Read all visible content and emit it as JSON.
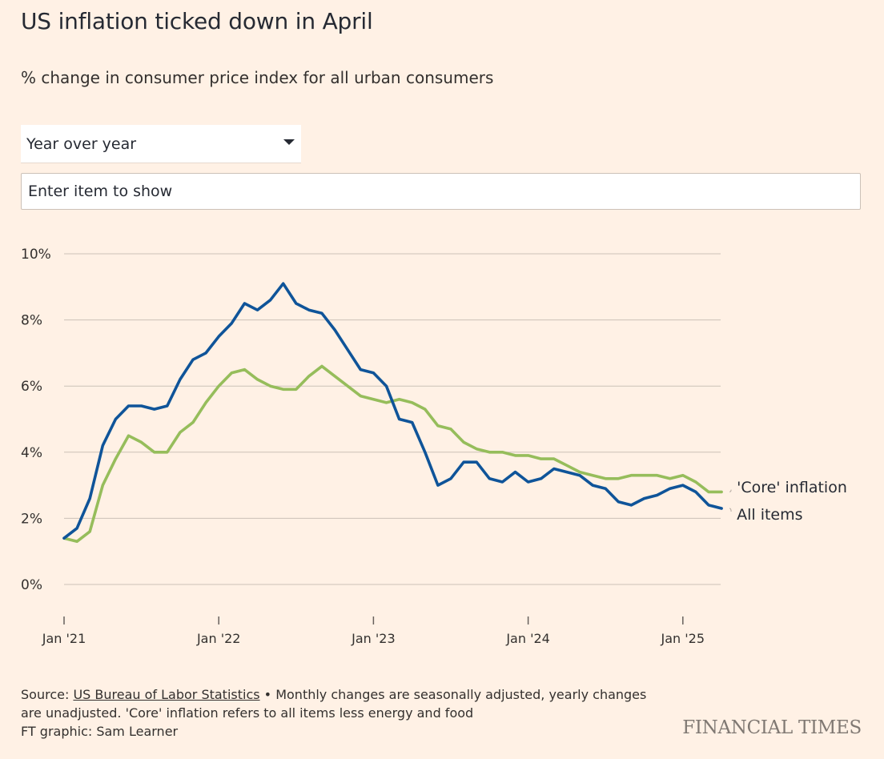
{
  "header": {
    "title": "US inflation ticked down in April",
    "subtitle": "% change in consumer price index for all urban consumers"
  },
  "controls": {
    "dropdown_value": "Year over year",
    "search_placeholder": "Enter item to show"
  },
  "footer": {
    "source_prefix": "Source: ",
    "source_link": "US Bureau of Labor Statistics",
    "source_note": " • Monthly changes are seasonally adjusted, yearly changes are unadjusted. 'Core' inflation refers to all items less energy and food",
    "credit": "FT graphic: Sam Learner",
    "brand": "FINANCIAL TIMES"
  },
  "colors": {
    "background": "#fff1e5",
    "all_items": "#0f5499",
    "core": "#96bd5b",
    "grid": "#ccc1b7",
    "text": "#33302e"
  },
  "chart_data": {
    "type": "line",
    "y_ticks": [
      0,
      2,
      4,
      6,
      8,
      10
    ],
    "y_tick_labels": [
      "0%",
      "2%",
      "4%",
      "6%",
      "8%",
      "10%"
    ],
    "ylim": [
      -1,
      10
    ],
    "x_ticks": [
      "2021-01",
      "2022-01",
      "2023-01",
      "2024-01",
      "2025-01"
    ],
    "x_tick_labels": [
      "Jan '21",
      "Jan '22",
      "Jan '23",
      "Jan '24",
      "Jan '25"
    ],
    "x": [
      "2021-01",
      "2021-02",
      "2021-03",
      "2021-04",
      "2021-05",
      "2021-06",
      "2021-07",
      "2021-08",
      "2021-09",
      "2021-10",
      "2021-11",
      "2021-12",
      "2022-01",
      "2022-02",
      "2022-03",
      "2022-04",
      "2022-05",
      "2022-06",
      "2022-07",
      "2022-08",
      "2022-09",
      "2022-10",
      "2022-11",
      "2022-12",
      "2023-01",
      "2023-02",
      "2023-03",
      "2023-04",
      "2023-05",
      "2023-06",
      "2023-07",
      "2023-08",
      "2023-09",
      "2023-10",
      "2023-11",
      "2023-12",
      "2024-01",
      "2024-02",
      "2024-03",
      "2024-04",
      "2024-05",
      "2024-06",
      "2024-07",
      "2024-08",
      "2024-09",
      "2024-10",
      "2024-11",
      "2024-12",
      "2025-01",
      "2025-02",
      "2025-03",
      "2025-04"
    ],
    "series": [
      {
        "name": "All items",
        "color": "#0f5499",
        "values": [
          1.4,
          1.7,
          2.6,
          4.2,
          5.0,
          5.4,
          5.4,
          5.3,
          5.4,
          6.2,
          6.8,
          7.0,
          7.5,
          7.9,
          8.5,
          8.3,
          8.6,
          9.1,
          8.5,
          8.3,
          8.2,
          7.7,
          7.1,
          6.5,
          6.4,
          6.0,
          5.0,
          4.9,
          4.0,
          3.0,
          3.2,
          3.7,
          3.7,
          3.2,
          3.1,
          3.4,
          3.1,
          3.2,
          3.5,
          3.4,
          3.3,
          3.0,
          2.9,
          2.5,
          2.4,
          2.6,
          2.7,
          2.9,
          3.0,
          2.8,
          2.4,
          2.3
        ]
      },
      {
        "name": "'Core' inflation",
        "color": "#96bd5b",
        "values": [
          1.4,
          1.3,
          1.6,
          3.0,
          3.8,
          4.5,
          4.3,
          4.0,
          4.0,
          4.6,
          4.9,
          5.5,
          6.0,
          6.4,
          6.5,
          6.2,
          6.0,
          5.9,
          5.9,
          6.3,
          6.6,
          6.3,
          6.0,
          5.7,
          5.6,
          5.5,
          5.6,
          5.5,
          5.3,
          4.8,
          4.7,
          4.3,
          4.1,
          4.0,
          4.0,
          3.9,
          3.9,
          3.8,
          3.8,
          3.6,
          3.4,
          3.3,
          3.2,
          3.2,
          3.3,
          3.3,
          3.3,
          3.2,
          3.3,
          3.1,
          2.8,
          2.8
        ]
      }
    ],
    "grid": true,
    "legend": "inline labels at right end of lines"
  }
}
